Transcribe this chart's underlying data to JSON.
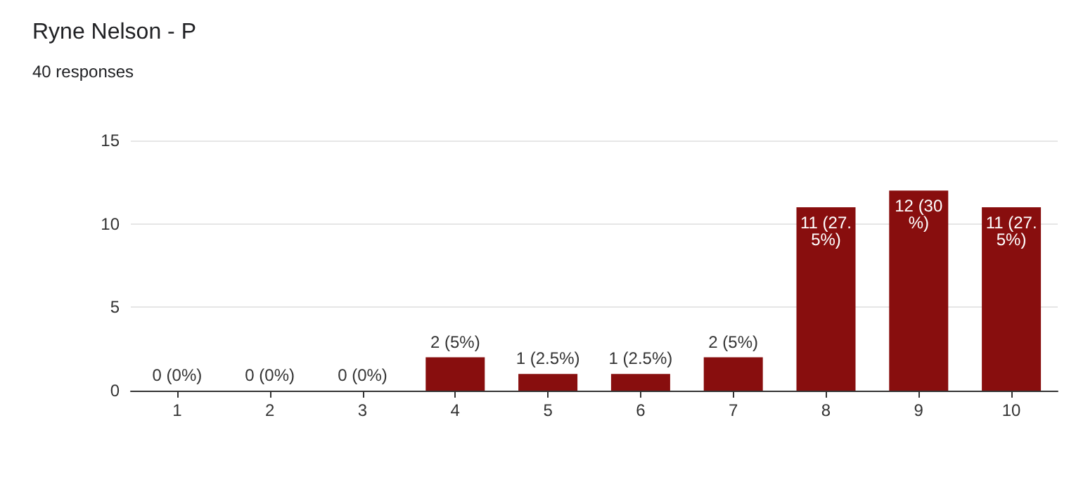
{
  "chart_data": {
    "type": "bar",
    "title": "Ryne Nelson - P",
    "subtitle": "40 responses",
    "categories": [
      "1",
      "2",
      "3",
      "4",
      "5",
      "6",
      "7",
      "8",
      "9",
      "10"
    ],
    "values": [
      0,
      0,
      0,
      2,
      1,
      1,
      2,
      11,
      12,
      11
    ],
    "value_labels": [
      "0 (0%)",
      "0 (0%)",
      "0 (0%)",
      "2 (5%)",
      "1 (2.5%)",
      "1 (2.5%)",
      "2 (5%)",
      "11 (27.5%)",
      "12 (30%)",
      "11 (27.5%)"
    ],
    "color": "#880e0e",
    "ylim": [
      0,
      15
    ],
    "yticks": [
      0,
      5,
      10,
      15
    ],
    "grid": "y"
  }
}
